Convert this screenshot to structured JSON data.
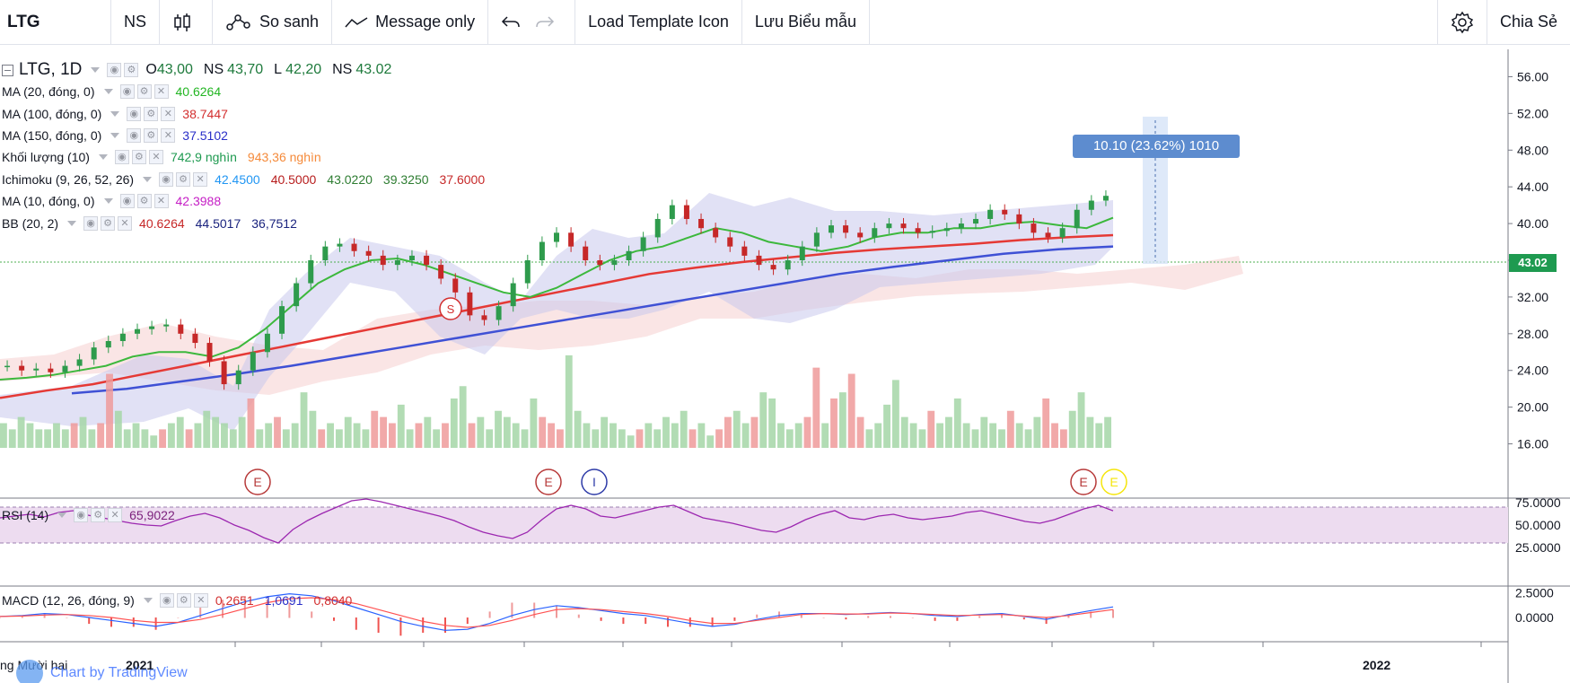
{
  "toolbar": {
    "symbol": "LTG",
    "interval": "NS",
    "compare": "So sanh",
    "message": "Message only",
    "load_template": "Load Template Icon",
    "save_template": "Lưu Biểu mẫu",
    "share": "Chia Sẻ"
  },
  "legend": {
    "main": {
      "name": "LTG, 1D",
      "o_label": "O",
      "o": "43,00",
      "h_label": "NS",
      "h": "43,70",
      "l_label": "L",
      "l": "42,20",
      "c_label": "NS",
      "c": "43.02"
    },
    "ma20": {
      "name": "MA (20, đóng, 0)",
      "value": "40.6264"
    },
    "ma100": {
      "name": "MA (100, đóng, 0)",
      "value": "38.7447"
    },
    "ma150": {
      "name": "MA (150, đóng, 0)",
      "value": "37.5102"
    },
    "vol": {
      "name": "Khối lượng (10)",
      "v1": "742,9 nghìn",
      "v2": "943,36 nghìn"
    },
    "ichimoku": {
      "name": "Ichimoku (9, 26, 52, 26)",
      "v1": "42.4500",
      "v2": "40.5000",
      "v3": "43.0220",
      "v4": "39.3250",
      "v5": "37.6000"
    },
    "ma10": {
      "name": "MA (10, đóng, 0)",
      "value": "42.3988"
    },
    "bb": {
      "name": "BB (20, 2)",
      "v1": "40.6264",
      "v2": "44.5017",
      "v3": "36,7512"
    },
    "rsi": {
      "name": "RSI (14)",
      "value": "65,9022"
    },
    "macd": {
      "name": "MACD (12, 26, đóng, 9)",
      "v1": "0,2651",
      "v2": "1,0691",
      "v3": "0,8040"
    }
  },
  "measure_label": "10.10 (23.62%) 1010",
  "price_label": "43.02",
  "branding": "Chart by TradingView",
  "colors": {
    "up": "#26a69a",
    "down": "#ef5350",
    "ma20": "#3cb83c",
    "ma100": "#e53935",
    "ma150": "#3f51d5",
    "bb_fill": "#c8c8ec",
    "rsi_fill": "#eddcf0",
    "rsi_line": "#9c27b0",
    "macd_line": "#2962ff",
    "signal_line": "#ff5252"
  },
  "chart_data": {
    "type": "line",
    "title": "LTG, 1D",
    "price_axis": {
      "ticks": [
        "56.00",
        "52.00",
        "48.00",
        "44.00",
        "40.00",
        "36.00",
        "32.00",
        "28.00",
        "24.00",
        "20.00",
        "16.00"
      ],
      "range": [
        14,
        58
      ]
    },
    "rsi_axis": {
      "ticks": [
        "75.0000",
        "50.0000",
        "25.0000"
      ],
      "range": [
        20,
        80
      ]
    },
    "macd_axis": {
      "ticks": [
        "2.5000",
        "0.0000"
      ],
      "range": [
        -2,
        3
      ]
    },
    "time_labels": [
      "ng Mười hai",
      "2021",
      "2022"
    ],
    "close_series": [
      24.5,
      24.0,
      24.2,
      23.8,
      24.5,
      25.2,
      26.5,
      27.2,
      28.0,
      28.5,
      28.8,
      29.0,
      28.0,
      27.0,
      25.0,
      22.5,
      24.0,
      26.0,
      28.0,
      31.0,
      33.5,
      36.0,
      37.5,
      37.8,
      37.0,
      36.5,
      35.5,
      36.0,
      36.5,
      35.5,
      34.0,
      32.5,
      30.0,
      29.5,
      31.0,
      33.5,
      36.0,
      38.0,
      39.0,
      37.5,
      36.0,
      35.5,
      36.0,
      37.0,
      38.5,
      40.5,
      42.0,
      40.5,
      39.5,
      38.5,
      37.5,
      36.5,
      35.5,
      35.0,
      36.0,
      37.5,
      39.0,
      39.8,
      39.0,
      38.5,
      39.5,
      40.0,
      39.5,
      39.0,
      39.2,
      39.5,
      40.0,
      40.5,
      41.5,
      41.0,
      40.0,
      39.0,
      38.5,
      39.5,
      41.5,
      42.5,
      43.02
    ],
    "ma20_series": [
      23.0,
      23.2,
      23.5,
      24.0,
      24.5,
      25.5,
      26.0,
      26.0,
      25.5,
      26.5,
      28.5,
      31.0,
      33.5,
      35.0,
      36.0,
      36.2,
      35.5,
      34.5,
      33.5,
      32.5,
      32.0,
      33.0,
      34.5,
      36.0,
      37.0,
      37.5,
      38.5,
      39.5,
      39.0,
      38.0,
      37.5,
      37.0,
      37.5,
      38.5,
      39.0,
      39.0,
      39.5,
      39.5,
      40.0,
      40.2,
      39.8,
      39.5,
      40.63
    ],
    "ma100_series": [
      21.0,
      21.8,
      22.5,
      23.5,
      24.5,
      25.5,
      26.5,
      27.5,
      28.5,
      29.5,
      30.5,
      31.5,
      32.5,
      33.5,
      34.5,
      35.2,
      35.8,
      36.3,
      36.8,
      37.2,
      37.5,
      37.8,
      38.2,
      38.5,
      38.74
    ],
    "ma150_series": [
      21.5,
      22.0,
      22.8,
      23.6,
      24.5,
      25.5,
      26.5,
      27.5,
      28.5,
      29.5,
      30.5,
      31.5,
      32.5,
      33.5,
      34.5,
      35.3,
      36.0,
      36.7,
      37.2,
      37.51
    ],
    "volume_series": [
      4,
      3,
      5,
      4,
      3,
      3,
      4,
      3,
      4,
      5,
      3,
      4,
      12,
      6,
      3,
      4,
      3,
      2,
      3,
      4,
      5,
      3,
      4,
      6,
      5,
      4,
      3,
      5,
      8,
      3,
      4,
      5,
      3,
      4,
      9,
      6,
      3,
      4,
      3,
      5,
      4,
      3,
      6,
      5,
      4,
      7,
      3,
      4,
      5,
      3,
      4,
      8,
      10,
      4,
      5,
      3,
      6,
      5,
      4,
      3,
      8,
      5,
      4,
      3,
      15,
      6,
      4,
      3,
      5,
      4,
      3,
      2,
      3,
      4,
      3,
      5,
      4,
      6,
      3,
      4,
      2,
      3,
      5,
      6,
      4,
      5,
      9,
      8,
      4,
      3,
      4,
      5,
      13,
      4,
      8,
      9,
      12,
      5,
      3,
      4,
      7,
      11,
      5,
      4,
      3,
      6,
      4,
      5,
      8,
      4,
      3,
      5,
      4,
      3,
      6,
      4,
      3,
      5,
      8,
      4,
      3,
      6,
      9,
      5,
      4,
      5
    ],
    "rsi_series": [
      58,
      60,
      62,
      59,
      64,
      66,
      61,
      58,
      55,
      52,
      50,
      49,
      55,
      60,
      63,
      58,
      50,
      44,
      36,
      30,
      45,
      55,
      63,
      70,
      77,
      79,
      76,
      72,
      68,
      64,
      60,
      55,
      48,
      42,
      38,
      35,
      42,
      56,
      68,
      72,
      68,
      60,
      58,
      62,
      66,
      70,
      72,
      65,
      58,
      55,
      52,
      48,
      44,
      42,
      48,
      56,
      62,
      66,
      58,
      56,
      60,
      62,
      58,
      56,
      58,
      60,
      64,
      66,
      62,
      58,
      54,
      52,
      56,
      62,
      68,
      72,
      65.9
    ],
    "macd_series": [
      0.1,
      0.2,
      0.4,
      0.3,
      0.0,
      -0.3,
      -0.6,
      -0.9,
      -0.5,
      0.2,
      0.9,
      1.6,
      2.1,
      2.4,
      2.2,
      1.7,
      1.0,
      0.3,
      -0.4,
      -0.9,
      -1.3,
      -1.2,
      -0.6,
      0.2,
      0.8,
      1.2,
      1.0,
      0.7,
      0.4,
      0.2,
      -0.2,
      -0.6,
      -0.9,
      -0.7,
      -0.2,
      0.2,
      0.4,
      0.4,
      0.3,
      0.4,
      0.5,
      0.4,
      0.2,
      0.1,
      0.3,
      0.4,
      0.1,
      -0.2,
      0.3,
      0.7,
      1.07
    ],
    "signal_series": [
      0.1,
      0.15,
      0.25,
      0.3,
      0.2,
      0.0,
      -0.3,
      -0.5,
      -0.5,
      -0.2,
      0.3,
      0.9,
      1.5,
      1.9,
      2.0,
      1.8,
      1.4,
      0.8,
      0.2,
      -0.4,
      -0.8,
      -1.0,
      -0.8,
      -0.3,
      0.3,
      0.8,
      0.9,
      0.8,
      0.6,
      0.4,
      0.1,
      -0.3,
      -0.6,
      -0.6,
      -0.3,
      0.0,
      0.3,
      0.4,
      0.35,
      0.35,
      0.45,
      0.4,
      0.3,
      0.2,
      0.25,
      0.3,
      0.15,
      0.0,
      0.2,
      0.5,
      0.8
    ]
  }
}
